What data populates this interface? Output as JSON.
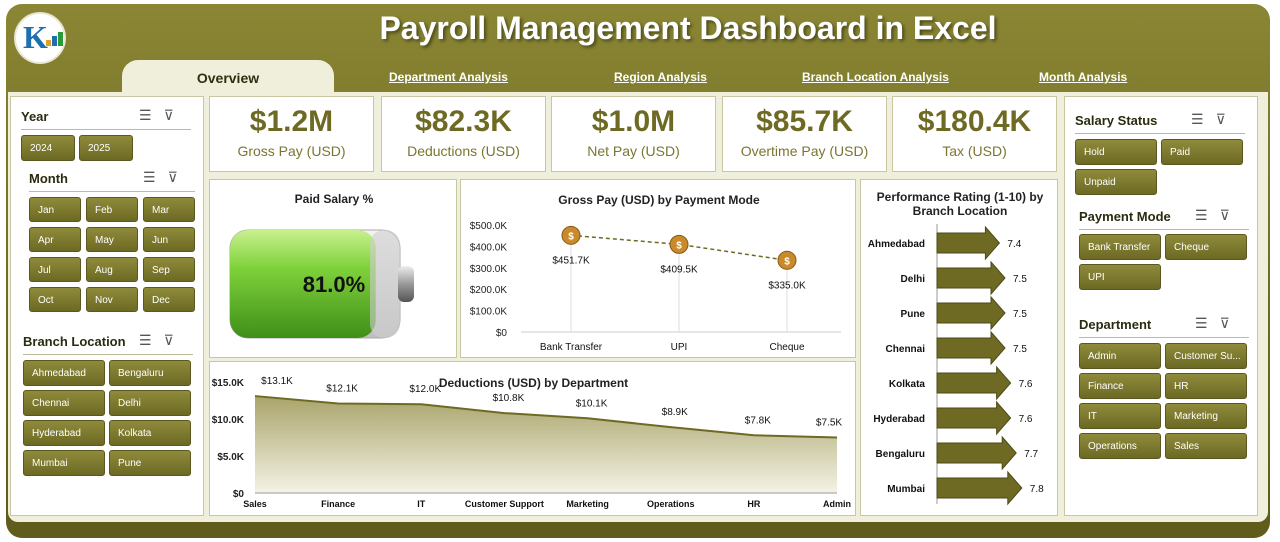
{
  "header": {
    "title": "Payroll Management Dashboard in Excel"
  },
  "tabs": {
    "active": "Overview",
    "items": [
      "Department Analysis",
      "Region Analysis",
      "Branch Location Analysis",
      "Month Analysis"
    ]
  },
  "colors": {
    "accent": "#6e6a24",
    "header_bg": "#7a7630",
    "content_bg": "#efefdc",
    "battery_fill": "#7fd13b"
  },
  "slicers": {
    "year": {
      "title": "Year",
      "options": [
        "2024",
        "2025"
      ]
    },
    "month": {
      "title": "Month",
      "options": [
        "Jan",
        "Feb",
        "Mar",
        "Apr",
        "May",
        "Jun",
        "Jul",
        "Aug",
        "Sep",
        "Oct",
        "Nov",
        "Dec"
      ]
    },
    "branch": {
      "title": "Branch Location",
      "options": [
        "Ahmedabad",
        "Bengaluru",
        "Chennai",
        "Delhi",
        "Hyderabad",
        "Kolkata",
        "Mumbai",
        "Pune"
      ]
    },
    "salary_status": {
      "title": "Salary Status",
      "options": [
        "Hold",
        "Paid",
        "Unpaid"
      ]
    },
    "payment_mode": {
      "title": "Payment Mode",
      "options": [
        "Bank Transfer",
        "Cheque",
        "UPI"
      ]
    },
    "department": {
      "title": "Department",
      "options": [
        "Admin",
        "Customer Su...",
        "Finance",
        "HR",
        "IT",
        "Marketing",
        "Operations",
        "Sales"
      ]
    }
  },
  "kpis": [
    {
      "value": "$1.2M",
      "label": "Gross Pay (USD)"
    },
    {
      "value": "$82.3K",
      "label": "Deductions (USD)"
    },
    {
      "value": "$1.0M",
      "label": "Net Pay (USD)"
    },
    {
      "value": "$85.7K",
      "label": "Overtime Pay (USD)"
    },
    {
      "value": "$180.4K",
      "label": "Tax (USD)"
    }
  ],
  "paid_salary": {
    "title": "Paid Salary %",
    "value_text": "81.0%",
    "fraction": 0.81
  },
  "chart_data": [
    {
      "type": "line",
      "title": "Gross Pay (USD) by Payment Mode",
      "categories": [
        "Bank Transfer",
        "UPI",
        "Cheque"
      ],
      "values": [
        451.7,
        409.5,
        335.0
      ],
      "labels": [
        "$451.7K",
        "$409.5K",
        "$335.0K"
      ],
      "yticks": [
        "$0",
        "$100.0K",
        "$200.0K",
        "$300.0K",
        "$400.0K",
        "$500.0K"
      ],
      "ylim": [
        0,
        500
      ]
    },
    {
      "type": "area",
      "title": "Deductions (USD) by Department",
      "categories": [
        "Sales",
        "Finance",
        "IT",
        "Customer Support",
        "Marketing",
        "Operations",
        "HR",
        "Admin"
      ],
      "values": [
        13.1,
        12.1,
        12.0,
        10.8,
        10.1,
        8.9,
        7.8,
        7.5
      ],
      "labels": [
        "$13.1K",
        "$12.1K",
        "$12.0K",
        "$10.8K",
        "$10.1K",
        "$8.9K",
        "$7.8K",
        "$7.5K"
      ],
      "yticks": [
        "$0",
        "$5.0K",
        "$10.0K",
        "$15.0K"
      ],
      "ylim": [
        0,
        15
      ]
    },
    {
      "type": "bar",
      "title": "Performance Rating (1-10) by Branch Location",
      "categories": [
        "Ahmedabad",
        "Delhi",
        "Pune",
        "Chennai",
        "Kolkata",
        "Hyderabad",
        "Bengaluru",
        "Mumbai"
      ],
      "values": [
        7.4,
        7.5,
        7.5,
        7.5,
        7.6,
        7.6,
        7.7,
        7.8
      ],
      "labels": [
        "7.4",
        "7.5",
        "7.5",
        "7.5",
        "7.6",
        "7.6",
        "7.7",
        "7.8"
      ]
    }
  ]
}
